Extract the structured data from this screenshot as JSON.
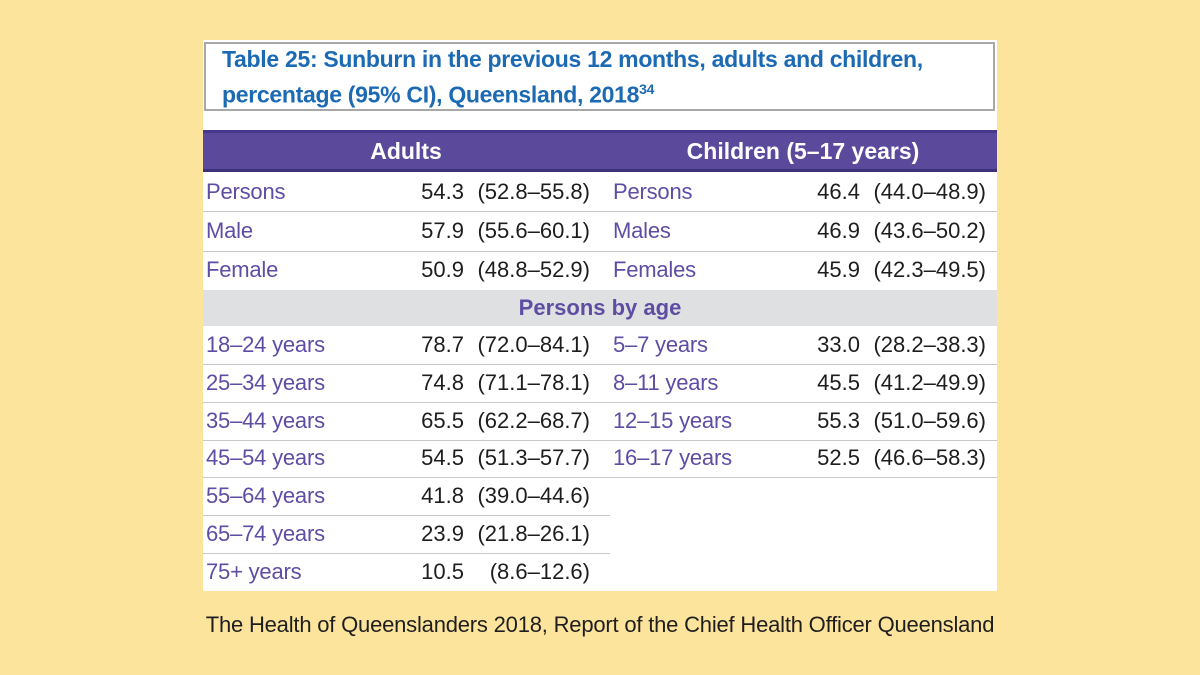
{
  "page": {
    "background_color": "#fde49d",
    "caption": "The Health of Queenslanders 2018, Report of the Chief Health Officer Queensland"
  },
  "table": {
    "title_line1": "Table 25: Sunburn in the previous 12 months, adults and children,",
    "title_line2": "percentage (95% CI), Queensland, 2018",
    "title_superscript": "34",
    "title_color": "#1b6ab3",
    "header": {
      "adults": "Adults",
      "children": "Children (5–17 years)",
      "band_color": "#5b4a9c",
      "text_color": "#ffffff"
    },
    "section_divider": "Persons by age",
    "label_color": "#5e4da3",
    "sex_rows": [
      {
        "a_label": "Persons",
        "a_pct": "54.3",
        "a_ci": "(52.8–55.8)",
        "c_label": "Persons",
        "c_pct": "46.4",
        "c_ci": "(44.0–48.9)"
      },
      {
        "a_label": "Male",
        "a_pct": "57.9",
        "a_ci": "(55.6–60.1)",
        "c_label": "Males",
        "c_pct": "46.9",
        "c_ci": "(43.6–50.2)"
      },
      {
        "a_label": "Female",
        "a_pct": "50.9",
        "a_ci": "(48.8–52.9)",
        "c_label": "Females",
        "c_pct": "45.9",
        "c_ci": "(42.3–49.5)"
      }
    ],
    "age_rows": [
      {
        "a_label": "18–24 years",
        "a_pct": "78.7",
        "a_ci": "(72.0–84.1)",
        "c_label": "5–7 years",
        "c_pct": "33.0",
        "c_ci": "(28.2–38.3)"
      },
      {
        "a_label": "25–34 years",
        "a_pct": "74.8",
        "a_ci": "(71.1–78.1)",
        "c_label": "8–11 years",
        "c_pct": "45.5",
        "c_ci": "(41.2–49.9)"
      },
      {
        "a_label": "35–44 years",
        "a_pct": "65.5",
        "a_ci": "(62.2–68.7)",
        "c_label": "12–15 years",
        "c_pct": "55.3",
        "c_ci": "(51.0–59.6)"
      },
      {
        "a_label": "45–54 years",
        "a_pct": "54.5",
        "a_ci": "(51.3–57.7)",
        "c_label": "16–17 years",
        "c_pct": "52.5",
        "c_ci": "(46.6–58.3)"
      },
      {
        "a_label": "55–64 years",
        "a_pct": "41.8",
        "a_ci": "(39.0–44.6)",
        "c_label": "",
        "c_pct": "",
        "c_ci": ""
      },
      {
        "a_label": "65–74 years",
        "a_pct": "23.9",
        "a_ci": "(21.8–26.1)",
        "c_label": "",
        "c_pct": "",
        "c_ci": ""
      },
      {
        "a_label": "75+ years",
        "a_pct": "10.5",
        "a_ci": "(8.6–12.6)",
        "c_label": "",
        "c_pct": "",
        "c_ci": ""
      }
    ]
  },
  "chart_data": {
    "type": "table",
    "title": "Table 25: Sunburn in the previous 12 months, adults and children, percentage (95% CI), Queensland, 2018",
    "footnote_marker": "34",
    "source": "The Health of Queenslanders 2018, Report of the Chief Health Officer Queensland",
    "value_format": "percent (95% CI low–high)",
    "sections": [
      {
        "header": "Adults",
        "rows": [
          {
            "group": "Persons",
            "percent": 54.3,
            "ci_low": 52.8,
            "ci_high": 55.8
          },
          {
            "group": "Male",
            "percent": 57.9,
            "ci_low": 55.6,
            "ci_high": 60.1
          },
          {
            "group": "Female",
            "percent": 50.9,
            "ci_low": 48.8,
            "ci_high": 52.9
          },
          {
            "group": "18–24 years",
            "percent": 78.7,
            "ci_low": 72.0,
            "ci_high": 84.1
          },
          {
            "group": "25–34 years",
            "percent": 74.8,
            "ci_low": 71.1,
            "ci_high": 78.1
          },
          {
            "group": "35–44 years",
            "percent": 65.5,
            "ci_low": 62.2,
            "ci_high": 68.7
          },
          {
            "group": "45–54 years",
            "percent": 54.5,
            "ci_low": 51.3,
            "ci_high": 57.7
          },
          {
            "group": "55–64 years",
            "percent": 41.8,
            "ci_low": 39.0,
            "ci_high": 44.6
          },
          {
            "group": "65–74 years",
            "percent": 23.9,
            "ci_low": 21.8,
            "ci_high": 26.1
          },
          {
            "group": "75+ years",
            "percent": 10.5,
            "ci_low": 8.6,
            "ci_high": 12.6
          }
        ]
      },
      {
        "header": "Children (5–17 years)",
        "rows": [
          {
            "group": "Persons",
            "percent": 46.4,
            "ci_low": 44.0,
            "ci_high": 48.9
          },
          {
            "group": "Males",
            "percent": 46.9,
            "ci_low": 43.6,
            "ci_high": 50.2
          },
          {
            "group": "Females",
            "percent": 45.9,
            "ci_low": 42.3,
            "ci_high": 49.5
          },
          {
            "group": "5–7 years",
            "percent": 33.0,
            "ci_low": 28.2,
            "ci_high": 38.3
          },
          {
            "group": "8–11 years",
            "percent": 45.5,
            "ci_low": 41.2,
            "ci_high": 49.9
          },
          {
            "group": "12–15 years",
            "percent": 55.3,
            "ci_low": 51.0,
            "ci_high": 59.6
          },
          {
            "group": "16–17 years",
            "percent": 52.5,
            "ci_low": 46.6,
            "ci_high": 58.3
          }
        ]
      }
    ],
    "notes": "Persons by age subsection splits adults (18–75+) and children (5–17) age bands"
  }
}
